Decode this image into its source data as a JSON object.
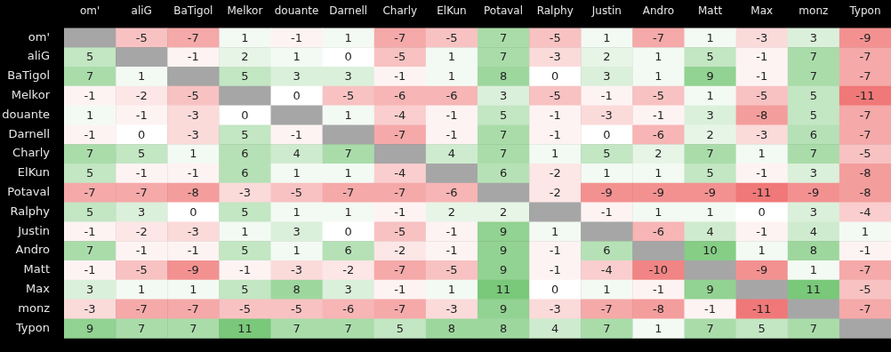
{
  "chart_data": {
    "type": "heatmap",
    "categories": [
      "om'",
      "aliG",
      "BaTigol",
      "Melkor",
      "douante",
      "Darnell",
      "Charly",
      "ElKun",
      "Potaval",
      "Ralphy",
      "Justin",
      "Andro",
      "Matt",
      "Max",
      "monz",
      "Typon"
    ],
    "y_categories": [
      "om'",
      "aliG",
      "BaTigol",
      "Melkor",
      "douante",
      "Darnell",
      "Charly",
      "ElKun",
      "Potaval",
      "Ralphy",
      "Justin",
      "Andro",
      "Matt",
      "Max",
      "monz",
      "Typon"
    ],
    "cells": [
      [
        null,
        -5,
        -7,
        1,
        -1,
        1,
        -7,
        -5,
        7,
        -5,
        1,
        -7,
        1,
        -3,
        3,
        -9
      ],
      [
        5,
        null,
        -1,
        2,
        1,
        0,
        -5,
        1,
        7,
        -3,
        2,
        1,
        5,
        -1,
        7,
        -7
      ],
      [
        7,
        1,
        null,
        5,
        3,
        3,
        -1,
        1,
        8,
        0,
        3,
        1,
        9,
        -1,
        7,
        -7
      ],
      [
        -1,
        -2,
        -5,
        null,
        0,
        -5,
        -6,
        -6,
        3,
        -5,
        -1,
        -5,
        1,
        -5,
        5,
        -11
      ],
      [
        1,
        -1,
        -3,
        0,
        null,
        1,
        -4,
        -1,
        5,
        -1,
        -3,
        -1,
        3,
        -8,
        5,
        -7
      ],
      [
        -1,
        0,
        -3,
        5,
        -1,
        null,
        -7,
        -1,
        7,
        -1,
        0,
        -6,
        2,
        -3,
        6,
        -7
      ],
      [
        7,
        5,
        1,
        6,
        4,
        7,
        null,
        4,
        7,
        1,
        5,
        2,
        7,
        1,
        7,
        -5
      ],
      [
        5,
        -1,
        -1,
        6,
        1,
        1,
        -4,
        null,
        6,
        -2,
        1,
        1,
        5,
        -1,
        3,
        -8
      ],
      [
        -7,
        -7,
        -8,
        -3,
        -5,
        -7,
        -7,
        -6,
        null,
        -2,
        -9,
        -9,
        -9,
        -11,
        -9,
        -8
      ],
      [
        5,
        3,
        0,
        5,
        1,
        1,
        -1,
        2,
        2,
        null,
        -1,
        1,
        1,
        0,
        3,
        -4
      ],
      [
        -1,
        -2,
        -3,
        1,
        3,
        0,
        -5,
        -1,
        9,
        1,
        null,
        -6,
        4,
        -1,
        4,
        1
      ],
      [
        7,
        -1,
        -1,
        5,
        1,
        6,
        -2,
        -1,
        9,
        -1,
        6,
        null,
        10,
        1,
        8,
        -1
      ],
      [
        -1,
        -5,
        -9,
        -1,
        -3,
        -2,
        -7,
        -5,
        9,
        -1,
        -4,
        -10,
        null,
        -9,
        1,
        -7
      ],
      [
        3,
        1,
        1,
        5,
        8,
        3,
        -1,
        1,
        11,
        0,
        1,
        -1,
        9,
        null,
        11,
        -5
      ],
      [
        -3,
        -7,
        -7,
        -5,
        -5,
        -6,
        -7,
        -3,
        9,
        -3,
        -7,
        -8,
        -1,
        -11,
        null,
        -7
      ],
      [
        9,
        7,
        7,
        11,
        7,
        7,
        5,
        8,
        8,
        4,
        7,
        1,
        7,
        5,
        7,
        null
      ]
    ],
    "data_labels": true
  }
}
